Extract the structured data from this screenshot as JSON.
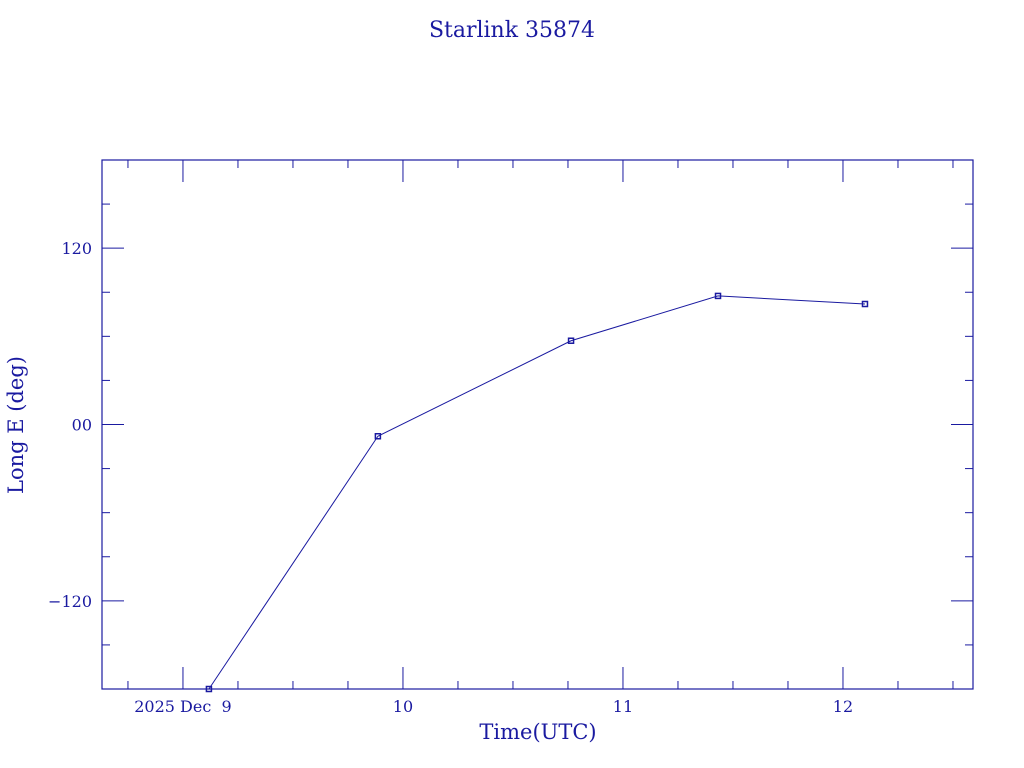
{
  "chart_data": {
    "type": "line",
    "title": "Starlink 35874",
    "xlabel": "Time(UTC)",
    "ylabel": "Long E (deg)",
    "x_date_prefix": "2025 Dec",
    "xlim": [
      8.632,
      12.591
    ],
    "ylim": [
      -180,
      180
    ],
    "x_major_ticks": [
      9,
      10,
      11,
      12
    ],
    "x_tick_labels": [
      "2025 Dec  9",
      "10",
      "11",
      "12"
    ],
    "x_minor_step": 0.25,
    "y_major_ticks": [
      120,
      0,
      -120
    ],
    "y_tick_labels": [
      "120",
      "00",
      "−120"
    ],
    "y_minor_step": 30,
    "grid": false,
    "color": "#1a1aa0",
    "series": [
      {
        "name": "Starlink 35874",
        "x": [
          9.118,
          9.886,
          10.764,
          11.432,
          12.1
        ],
        "y": [
          -180,
          -8,
          57,
          87.5,
          82
        ]
      }
    ]
  }
}
